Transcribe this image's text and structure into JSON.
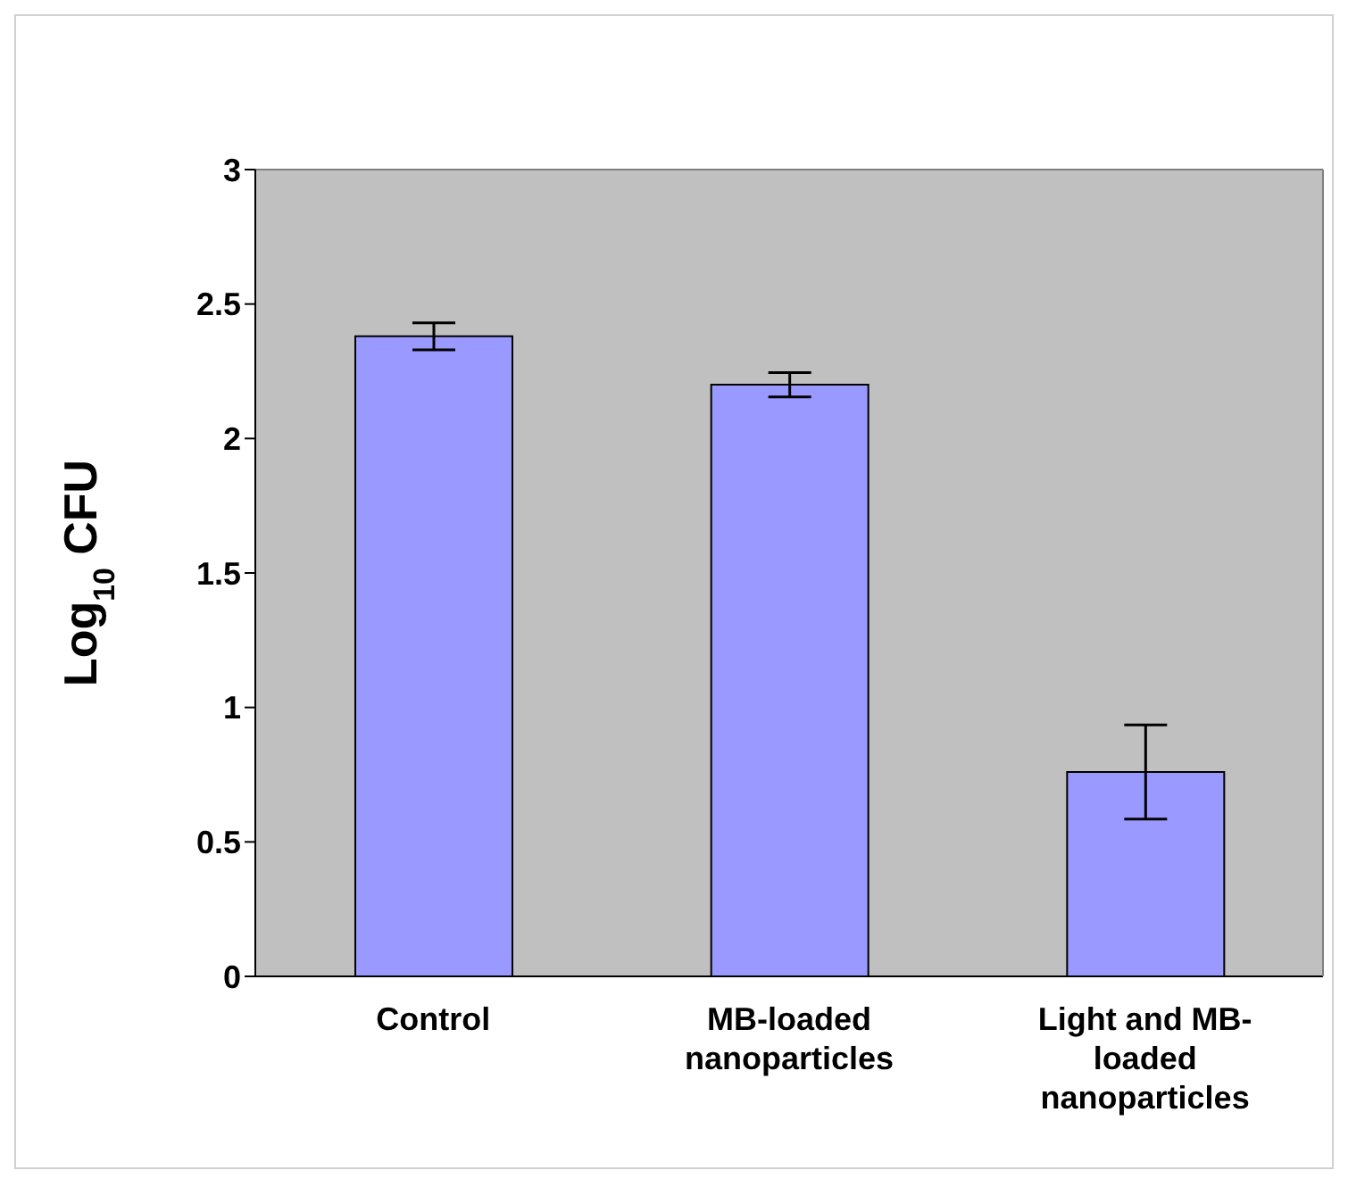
{
  "chart_data": {
    "type": "bar",
    "ylabel": "Log$_{10}$ CFU",
    "categories": [
      "Control",
      "MB-loaded nanoparticles",
      "Light and MB-loaded nanoparticles"
    ],
    "values": [
      2.38,
      2.2,
      0.76
    ],
    "errors": [
      0.05,
      0.045,
      0.175
    ],
    "color": "#9999ff",
    "ylim": [
      0,
      3
    ],
    "yticks": [
      0,
      0.5,
      1,
      1.5,
      2,
      2.5,
      3
    ],
    "grid": false
  }
}
